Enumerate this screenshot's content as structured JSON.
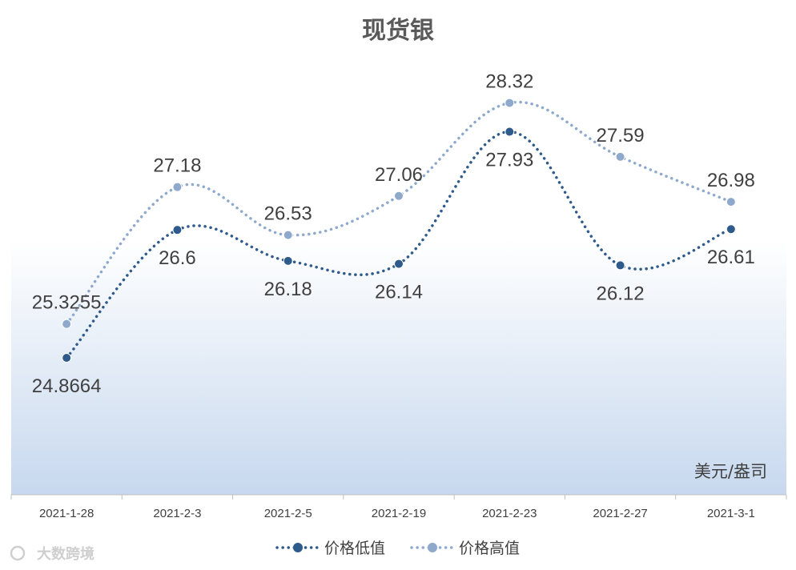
{
  "chart_data": {
    "type": "line",
    "title": "现货银",
    "unit_label": "美元/盎司",
    "categories": [
      "2021-1-28",
      "2021-2-3",
      "2021-2-5",
      "2021-2-19",
      "2021-2-23",
      "2021-2-27",
      "2021-3-1"
    ],
    "series": [
      {
        "name": "价格低值",
        "values": [
          24.8664,
          26.6,
          26.18,
          26.14,
          27.93,
          26.12,
          26.61
        ],
        "labels": [
          "24.8664",
          "26.6",
          "26.18",
          "26.14",
          "27.93",
          "26.12",
          "26.61"
        ],
        "color": "#2f5b8c"
      },
      {
        "name": "价格高值",
        "values": [
          25.3255,
          27.18,
          26.53,
          27.06,
          28.32,
          27.59,
          26.98
        ],
        "labels": [
          "25.3255",
          "27.18",
          "26.53",
          "27.06",
          "28.32",
          "27.59",
          "26.98"
        ],
        "color": "#8fa9cc"
      }
    ],
    "high_low_lines": true,
    "grid": false,
    "legend_position": "bottom",
    "line_style": "dotted smooth with markers"
  },
  "watermark": "大数跨境"
}
